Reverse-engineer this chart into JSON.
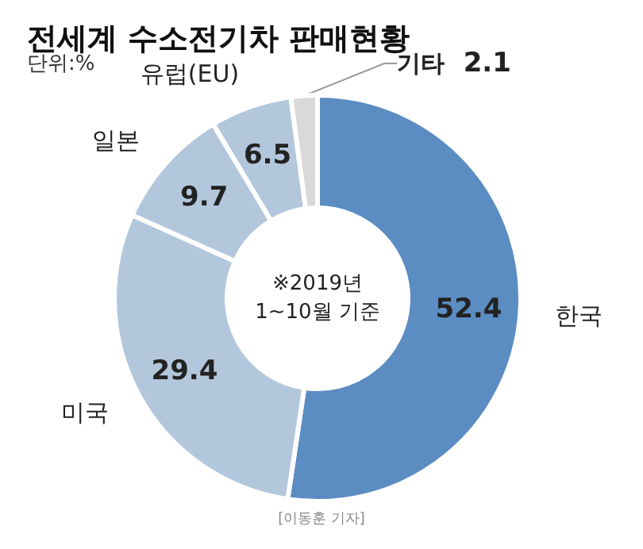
{
  "chart_data": {
    "type": "donut",
    "title": "전세계 수소전기차 판매현황",
    "subtitle": "단위:%",
    "categories": [
      "한국",
      "미국",
      "일본",
      "유럽(EU)",
      "기타"
    ],
    "values": [
      52.4,
      29.4,
      9.7,
      6.5,
      2.1
    ],
    "colors": [
      "#5b8cc2",
      "#b3c7dc",
      "#b3c7dc",
      "#b3c7dc",
      "#d9d9d9"
    ],
    "data_labels": true,
    "legend": false,
    "annotations": [
      "※2019년\n1~10월 기준",
      "[이동훈 기자]"
    ]
  }
}
